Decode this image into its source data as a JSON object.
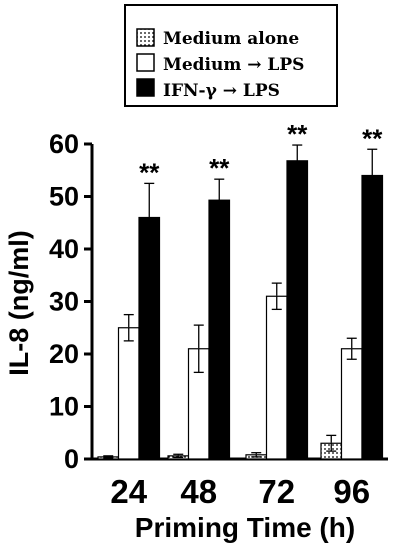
{
  "chart_data": {
    "type": "bar",
    "title": "",
    "xlabel": "Priming Time (h)",
    "ylabel": "IL-8 (ng/ml)",
    "ylim": [
      0,
      60
    ],
    "yticks": [
      "0",
      "10",
      "20",
      "30",
      "40",
      "50",
      "60"
    ],
    "categories": [
      "24",
      "48",
      "72",
      "96"
    ],
    "legend_position": "top",
    "series": [
      {
        "name": "Medium alone",
        "pattern": "dotted",
        "fill": "#ffffff",
        "values": [
          0.4,
          0.6,
          0.8,
          3
        ],
        "errors": [
          0.2,
          0.3,
          0.4,
          1.5
        ]
      },
      {
        "name": "Medium → LPS",
        "pattern": "open",
        "fill": "#ffffff",
        "values": [
          25,
          21,
          31,
          21
        ],
        "errors": [
          2.5,
          4.5,
          2.5,
          2
        ]
      },
      {
        "name": "IFN-γ → LPS",
        "pattern": "solid",
        "fill": "#000000",
        "values": [
          46,
          49.3,
          56.8,
          54
        ],
        "errors": [
          6.5,
          4,
          3,
          5
        ]
      }
    ],
    "annotations": [
      {
        "category": "24",
        "text": "**"
      },
      {
        "category": "48",
        "text": "**"
      },
      {
        "category": "72",
        "text": "**"
      },
      {
        "category": "96",
        "text": "**"
      }
    ]
  }
}
